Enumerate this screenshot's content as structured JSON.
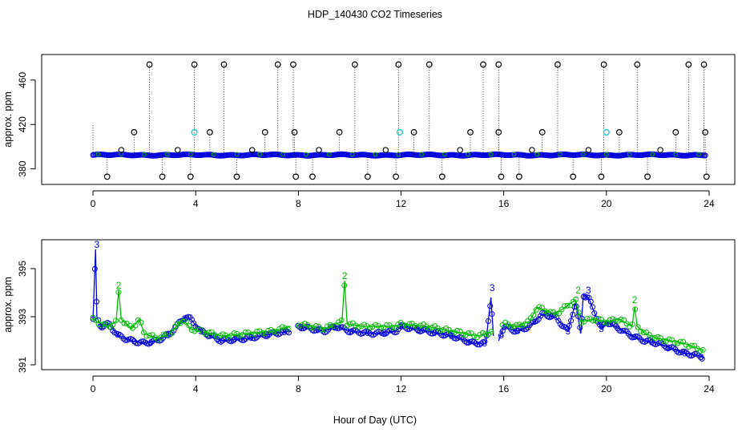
{
  "title": "HDP_140430  CO2 Timeseries",
  "xlabel": "Hour of Day (UTC)",
  "colors": {
    "black": "#000000",
    "blue": "#0000dd",
    "green": "#00bb00",
    "cyan": "#22cccc"
  },
  "chart_data": [
    {
      "type": "scatter",
      "panel": "top",
      "ylabel": "approx. ppm",
      "xlim": [
        -2,
        25
      ],
      "ylim": [
        366,
        483
      ],
      "xticks": [
        0,
        4,
        8,
        12,
        16,
        20,
        24
      ],
      "xtick_labels": [
        "0",
        "4",
        "8",
        "12",
        "16",
        "20",
        "24"
      ],
      "yticks": [
        380,
        420,
        460
      ],
      "ytick_labels": [
        "380",
        "420",
        "460"
      ],
      "baseline": 392.5,
      "spikes_high": [
        2.2,
        3.95,
        5.1,
        7.2,
        7.8,
        10.2,
        11.9,
        13.1,
        15.2,
        15.8,
        18.1,
        19.9,
        21.2,
        23.2,
        23.8
      ],
      "spikes_mid": [
        1.6,
        4.55,
        6.7,
        7.85,
        9.6,
        12.5,
        14.7,
        15.8,
        17.5,
        20.5,
        22.7,
        23.85
      ],
      "spikes_low": [
        0.55,
        2.7,
        3.8,
        5.6,
        7.9,
        8.55,
        10.7,
        11.8,
        13.6,
        15.9,
        16.6,
        18.7,
        19.8,
        21.6,
        23.9
      ],
      "small_high": [
        1.1,
        3.3,
        6.2,
        8.8,
        11.4,
        14.3,
        17.1,
        19.3,
        22.1
      ],
      "cyan_points": [
        3.95,
        11.95,
        20.0
      ],
      "high_value": 474,
      "mid_value": 413,
      "low_value": 373,
      "small_value": 397
    },
    {
      "type": "scatter",
      "panel": "bottom",
      "ylabel": "approx. ppm",
      "xlim": [
        -2,
        25
      ],
      "ylim": [
        390.8,
        396.2
      ],
      "xticks": [
        0,
        4,
        8,
        12,
        16,
        20,
        24
      ],
      "xtick_labels": [
        "0",
        "4",
        "8",
        "12",
        "16",
        "20",
        "24"
      ],
      "yticks": [
        391,
        393,
        395
      ],
      "ytick_labels": [
        "391",
        "393",
        "395"
      ],
      "series": [
        {
          "name": "3",
          "color": "blue",
          "x": [
            0.0,
            0.1,
            0.15,
            0.3,
            0.6,
            1.0,
            1.5,
            2.0,
            2.5,
            3.0,
            3.5,
            3.65,
            3.8,
            4.2,
            5.0,
            6.0,
            7.0,
            7.7,
            8.0,
            9.0,
            9.5,
            10.0,
            11.0,
            11.8,
            12.0,
            13.0,
            14.0,
            14.8,
            15.3,
            15.5,
            15.6,
            15.8,
            16.0,
            16.5,
            17.0,
            17.5,
            18.0,
            18.5,
            18.8,
            19.0,
            19.1,
            19.3,
            19.6,
            19.8,
            20.0,
            20.5,
            21.0,
            21.5,
            22.0,
            22.5,
            23.0,
            23.5,
            23.8
          ],
          "y": [
            392.9,
            395.8,
            393.0,
            392.6,
            392.7,
            392.2,
            392.0,
            391.9,
            392.0,
            392.3,
            392.9,
            393.0,
            392.9,
            392.4,
            392.0,
            392.1,
            392.3,
            392.4,
            392.6,
            392.4,
            392.6,
            392.4,
            392.3,
            392.4,
            392.6,
            392.4,
            392.2,
            391.9,
            391.9,
            393.8,
            392.2,
            392.0,
            392.6,
            392.4,
            392.6,
            393.1,
            393.0,
            392.4,
            393.6,
            392.3,
            393.9,
            393.8,
            393.0,
            392.5,
            392.8,
            392.5,
            392.2,
            392.0,
            391.9,
            391.7,
            391.5,
            391.4,
            391.3
          ],
          "gaps_after": [
            7.7,
            15.6
          ]
        },
        {
          "name": "2",
          "color": "green",
          "x": [
            0.0,
            0.3,
            0.6,
            0.9,
            1.0,
            1.1,
            1.5,
            1.8,
            2.0,
            2.5,
            3.0,
            3.5,
            3.8,
            4.2,
            5.0,
            6.0,
            7.0,
            7.7,
            8.0,
            9.0,
            9.7,
            9.8,
            9.9,
            10.5,
            11.0,
            11.8,
            12.0,
            13.0,
            14.0,
            15.0,
            15.6,
            16.0,
            16.5,
            17.0,
            17.3,
            18.0,
            18.8,
            19.0,
            19.5,
            20.0,
            20.5,
            21.0,
            21.1,
            21.2,
            21.5,
            22.0,
            22.5,
            23.0,
            23.5,
            23.8
          ],
          "y": [
            392.9,
            392.7,
            392.6,
            392.8,
            394.1,
            392.9,
            392.5,
            392.9,
            392.3,
            392.1,
            392.3,
            392.9,
            392.5,
            392.4,
            392.2,
            392.3,
            392.4,
            392.6,
            392.7,
            392.5,
            392.8,
            394.5,
            392.7,
            392.6,
            392.6,
            392.6,
            392.7,
            392.6,
            392.4,
            392.2,
            392.4,
            392.7,
            392.6,
            392.8,
            393.4,
            393.1,
            393.7,
            392.8,
            392.9,
            392.8,
            392.9,
            392.6,
            393.4,
            392.6,
            392.3,
            392.1,
            392.0,
            391.9,
            391.7,
            391.6
          ],
          "gaps_after": [
            7.7,
            15.6
          ]
        }
      ],
      "labelled_peaks": [
        {
          "x": 0.15,
          "y": 395.8,
          "label": "3",
          "color": "blue"
        },
        {
          "x": 1.0,
          "y": 394.1,
          "label": "2",
          "color": "green"
        },
        {
          "x": 9.8,
          "y": 394.5,
          "label": "2",
          "color": "green"
        },
        {
          "x": 15.55,
          "y": 394.0,
          "label": "3",
          "color": "blue"
        },
        {
          "x": 18.9,
          "y": 393.9,
          "label": "2",
          "color": "green"
        },
        {
          "x": 19.3,
          "y": 393.9,
          "label": "3",
          "color": "blue"
        },
        {
          "x": 21.1,
          "y": 393.5,
          "label": "2",
          "color": "green"
        }
      ]
    }
  ]
}
